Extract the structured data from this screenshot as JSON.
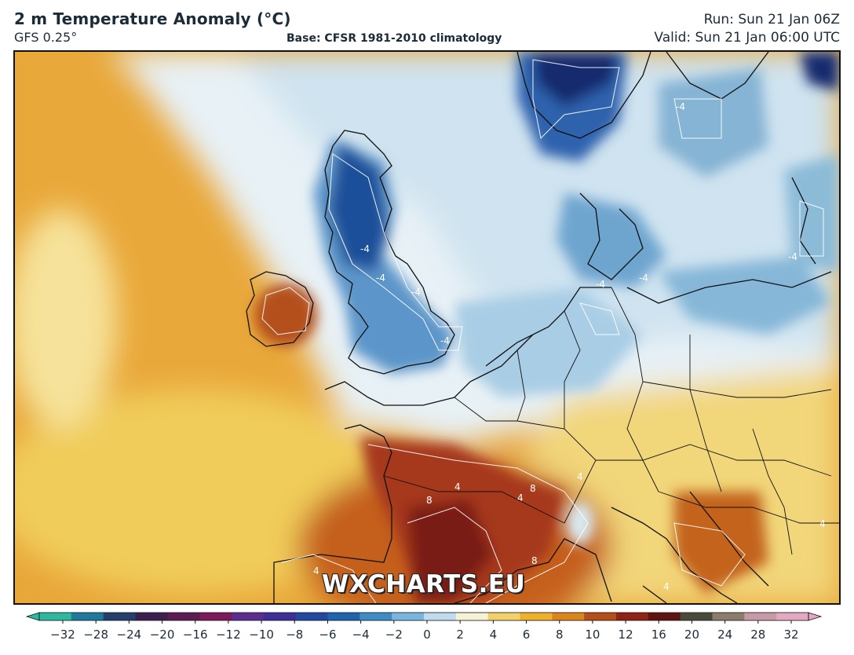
{
  "header": {
    "title": "2 m Temperature Anomaly (°C)",
    "model": "GFS 0.25°",
    "base": "Base: CFSR 1981-2010 climatology",
    "run": "Run: Sun 21 Jan 06Z",
    "valid": "Valid: Sun 21 Jan 06:00 UTC"
  },
  "watermark": "WXCHARTS.EU",
  "colorbar": {
    "ticks": [
      "−32",
      "−28",
      "−24",
      "−20",
      "−16",
      "−12",
      "−10",
      "−8",
      "−6",
      "−4",
      "−2",
      "0",
      "2",
      "4",
      "6",
      "8",
      "10",
      "12",
      "16",
      "20",
      "24",
      "28",
      "32"
    ],
    "colors": [
      "#2fb8a0",
      "#1e7a9a",
      "#23406d",
      "#3b1f4e",
      "#5a1c52",
      "#7c1a5a",
      "#5c2d91",
      "#3d2f96",
      "#22489f",
      "#1f63ad",
      "#3d8cc6",
      "#79b5dc",
      "#bfdcee",
      "#f6f2d6",
      "#f2d16b",
      "#efb12c",
      "#d9861d",
      "#b3501a",
      "#8e2416",
      "#5e1411",
      "#4a4a3a",
      "#8c7d6b",
      "#c79aa8",
      "#e3a9c0"
    ]
  },
  "contour_labels": [
    "-4",
    "-4",
    "-4",
    "-4",
    "-4",
    "-4",
    "-4",
    "-4",
    "4",
    "4",
    "4",
    "4",
    "4",
    "4",
    "8",
    "8",
    "8"
  ],
  "colors": {
    "warm_deep": "#7a1a12",
    "warm": "#e9a43a",
    "cold": "#2f6fb0",
    "cold_deep": "#1c3f86",
    "neutral": "#e8f1f6"
  }
}
